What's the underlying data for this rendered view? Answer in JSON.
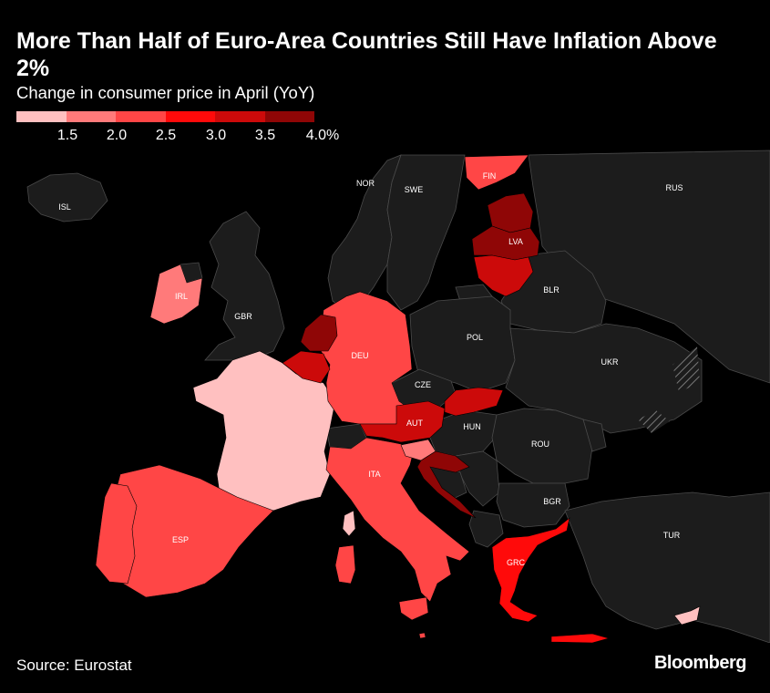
{
  "title": "More Than Half of Euro-Area Countries Still Have Inflation Above 2%",
  "subtitle": "Change in consumer price in April (YoY)",
  "legend": {
    "colors": [
      "#ffc0c0",
      "#ff7a7a",
      "#ff4646",
      "#ff0a0a",
      "#cc0a0a",
      "#8f0606"
    ],
    "labels": [
      "1.5",
      "2.0",
      "2.5",
      "3.0",
      "3.5",
      "4.0%"
    ]
  },
  "map": {
    "non_euro_fill": "#1c1c1c",
    "border_color": "#4a4a4a",
    "labels": {
      "FIN": "FIN",
      "NOR": "NOR",
      "SWE": "SWE",
      "RUS": "RUS",
      "ISL": "ISL",
      "IRL": "IRL",
      "GBR": "GBR",
      "LVA": "LVA",
      "BLR": "BLR",
      "POL": "POL",
      "DEU": "DEU",
      "UKR": "UKR",
      "CZE": "CZE",
      "AUT": "AUT",
      "HUN": "HUN",
      "ROU": "ROU",
      "ITA": "ITA",
      "BGR": "BGR",
      "ESP": "ESP",
      "TUR": "TUR",
      "GRC": "GRC"
    },
    "countries": [
      {
        "code": "FRA",
        "color": "#ffc0c0"
      },
      {
        "code": "ESP",
        "color": "#ff4646"
      },
      {
        "code": "PRT",
        "color": "#ff4646"
      },
      {
        "code": "ITA",
        "color": "#ff4646"
      },
      {
        "code": "DEU",
        "color": "#ff4646"
      },
      {
        "code": "IRL",
        "color": "#ff7a7a"
      },
      {
        "code": "FIN",
        "color": "#ff4646"
      },
      {
        "code": "NLD",
        "color": "#8f0606"
      },
      {
        "code": "BEL",
        "color": "#cc0a0a"
      },
      {
        "code": "AUT",
        "color": "#cc0a0a"
      },
      {
        "code": "SVK",
        "color": "#cc0a0a"
      },
      {
        "code": "SVN",
        "color": "#ff7a7a"
      },
      {
        "code": "HRV",
        "color": "#8f0606"
      },
      {
        "code": "EST",
        "color": "#8f0606"
      },
      {
        "code": "LVA",
        "color": "#8f0606"
      },
      {
        "code": "LTU",
        "color": "#cc0a0a"
      },
      {
        "code": "GRC",
        "color": "#ff0a0a"
      },
      {
        "code": "CYP",
        "color": "#ffc0c0"
      },
      {
        "code": "MLT",
        "color": "#ff4646"
      }
    ]
  },
  "source": "Source: Eurostat",
  "brand": "Bloomberg"
}
